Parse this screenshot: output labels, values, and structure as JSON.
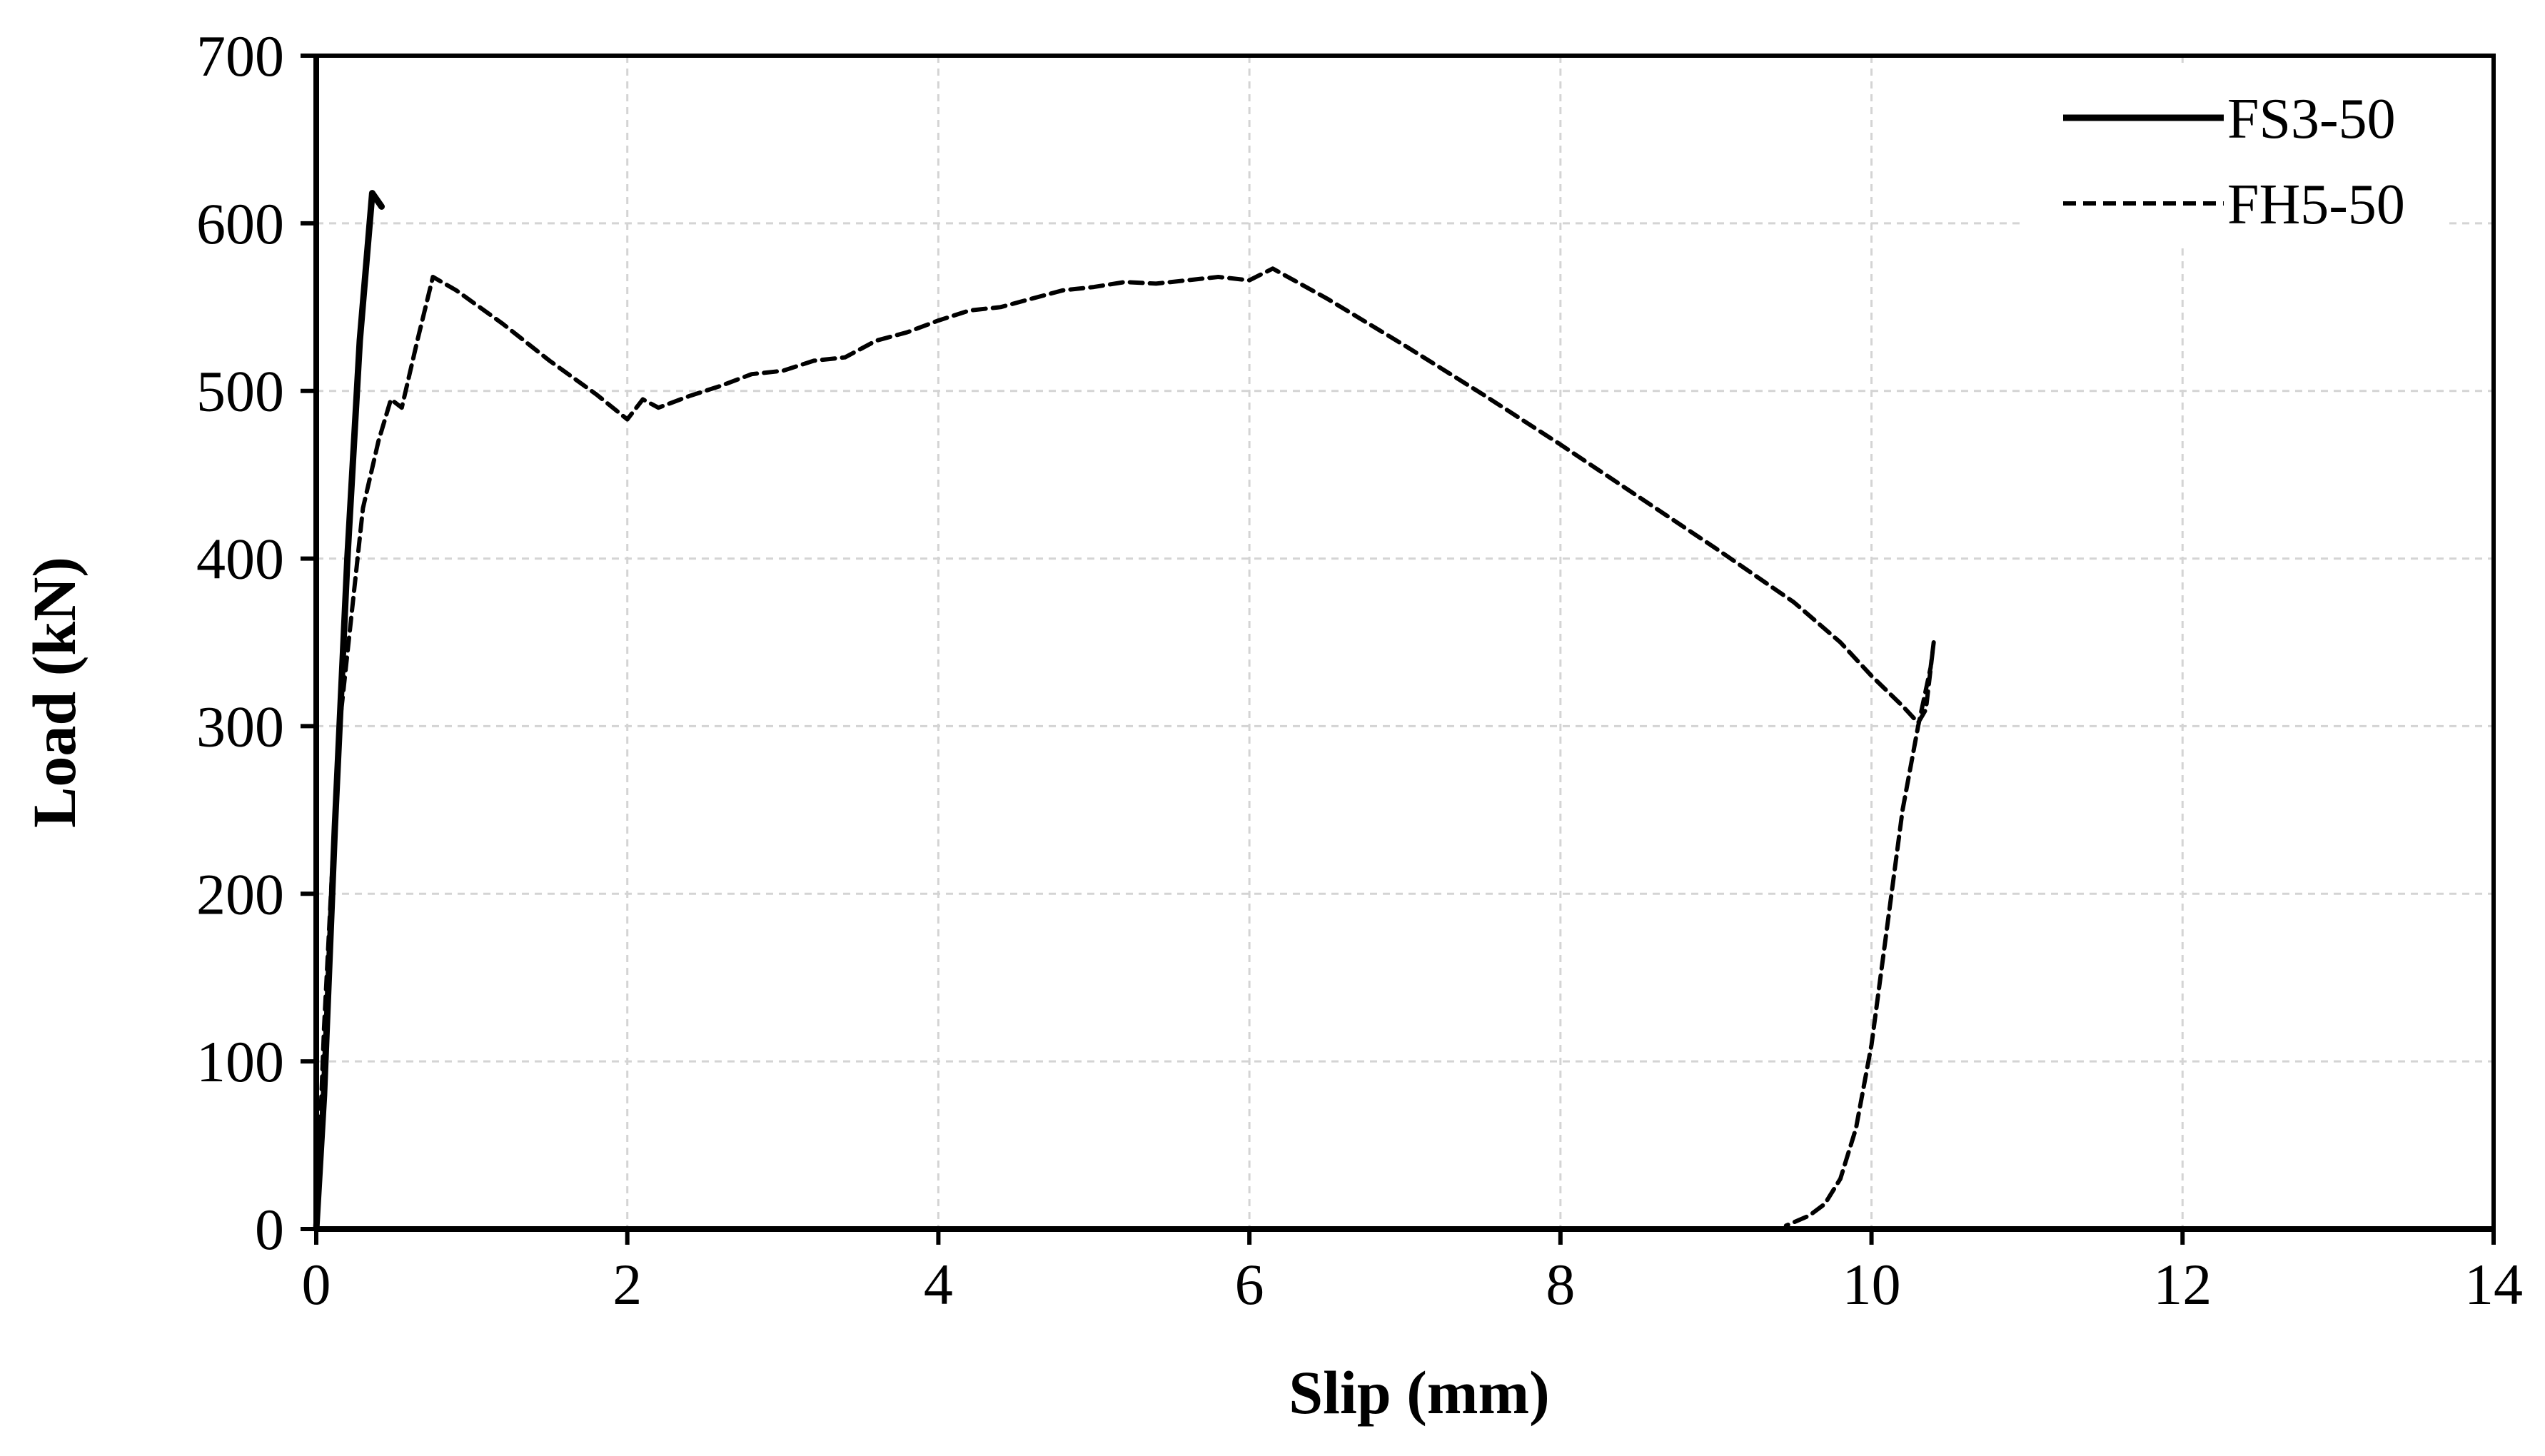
{
  "chart_data": {
    "type": "line",
    "xlabel": "Slip (mm)",
    "ylabel": "Load (kN)",
    "xlim": [
      0,
      14
    ],
    "ylim": [
      0,
      700
    ],
    "xticks": [
      0,
      2,
      4,
      6,
      8,
      10,
      12,
      14
    ],
    "yticks": [
      0,
      100,
      200,
      300,
      400,
      500,
      600,
      700
    ],
    "grid": true,
    "legend_position": "top-right",
    "series": [
      {
        "name": "FS3-50",
        "style": "solid",
        "color": "#000000",
        "points": [
          [
            0,
            0
          ],
          [
            0.05,
            80
          ],
          [
            0.12,
            240
          ],
          [
            0.2,
            400
          ],
          [
            0.28,
            530
          ],
          [
            0.36,
            618
          ],
          [
            0.42,
            610
          ]
        ]
      },
      {
        "name": "FH5-50",
        "style": "dashed",
        "color": "#000000",
        "points": [
          [
            0,
            0
          ],
          [
            0.05,
            120
          ],
          [
            0.15,
            300
          ],
          [
            0.3,
            430
          ],
          [
            0.4,
            470
          ],
          [
            0.48,
            495
          ],
          [
            0.55,
            490
          ],
          [
            0.65,
            530
          ],
          [
            0.75,
            568
          ],
          [
            0.9,
            560
          ],
          [
            1.2,
            540
          ],
          [
            1.5,
            518
          ],
          [
            1.8,
            498
          ],
          [
            2.0,
            483
          ],
          [
            2.1,
            495
          ],
          [
            2.2,
            490
          ],
          [
            2.4,
            497
          ],
          [
            2.6,
            503
          ],
          [
            2.8,
            510
          ],
          [
            3.0,
            512
          ],
          [
            3.2,
            518
          ],
          [
            3.4,
            520
          ],
          [
            3.6,
            530
          ],
          [
            3.8,
            535
          ],
          [
            4.0,
            542
          ],
          [
            4.2,
            548
          ],
          [
            4.4,
            550
          ],
          [
            4.6,
            555
          ],
          [
            4.8,
            560
          ],
          [
            5.0,
            562
          ],
          [
            5.2,
            565
          ],
          [
            5.4,
            564
          ],
          [
            5.6,
            566
          ],
          [
            5.8,
            568
          ],
          [
            6.0,
            566
          ],
          [
            6.15,
            573
          ],
          [
            6.5,
            555
          ],
          [
            7.0,
            527
          ],
          [
            7.5,
            498
          ],
          [
            8.0,
            468
          ],
          [
            8.5,
            437
          ],
          [
            9.0,
            406
          ],
          [
            9.5,
            374
          ],
          [
            9.8,
            350
          ],
          [
            10.0,
            330
          ],
          [
            10.2,
            312
          ],
          [
            10.3,
            302
          ],
          [
            10.35,
            310
          ],
          [
            10.4,
            350
          ],
          [
            10.38,
            335
          ],
          [
            10.3,
            300
          ],
          [
            10.2,
            250
          ],
          [
            10.1,
            180
          ],
          [
            10.0,
            110
          ],
          [
            9.9,
            60
          ],
          [
            9.8,
            30
          ],
          [
            9.7,
            15
          ],
          [
            9.6,
            8
          ],
          [
            9.45,
            2
          ]
        ]
      }
    ]
  }
}
